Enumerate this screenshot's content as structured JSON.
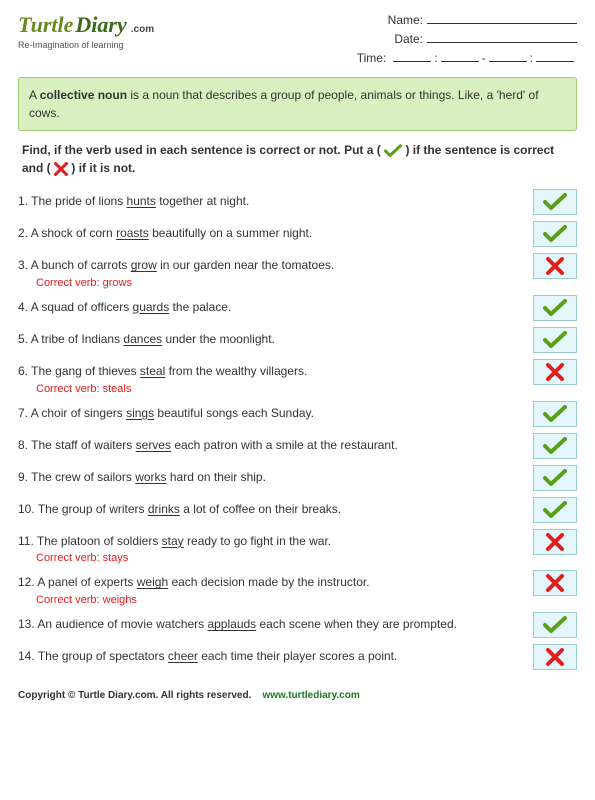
{
  "logo": {
    "turtle": "Turtle",
    "diary": "Diary",
    "dotcom": ".com",
    "tagline": "Re-Imagination of learning"
  },
  "header_fields": {
    "name_label": "Name:",
    "date_label": "Date:",
    "time_label": "Time:"
  },
  "definition": {
    "prefix": "A ",
    "term": "collective noun",
    "rest": " is a noun that describes a group of people, animals or things. Like, a 'herd' of cows."
  },
  "instructions": {
    "part1": "Find, if the verb used in each sentence is correct or not. Put a (",
    "part2": ") if the sentence is correct and (",
    "part3": ") if it is not."
  },
  "correct_verb_label": "Correct verb:",
  "questions": [
    {
      "num": "1.",
      "before": "The pride of lions ",
      "verb": "hunts",
      "after": " together at night.",
      "answer": "check",
      "correction": null
    },
    {
      "num": "2.",
      "before": "A shock of corn ",
      "verb": "roasts",
      "after": " beautifully on a summer night.",
      "answer": "check",
      "correction": null
    },
    {
      "num": "3.",
      "before": "A bunch of carrots  ",
      "verb": "grow",
      "after": " in our garden near the tomatoes.",
      "answer": "cross",
      "correction": "grows"
    },
    {
      "num": "4.",
      "before": "A squad of officers ",
      "verb": "guards",
      "after": " the palace.",
      "answer": "check",
      "correction": null
    },
    {
      "num": "5.",
      "before": "A tribe of Indians ",
      "verb": "dances",
      "after": " under the moonlight.",
      "answer": "check",
      "correction": null
    },
    {
      "num": "6.",
      "before": "The gang of thieves ",
      "verb": "steal",
      "after": " from the wealthy villagers.",
      "answer": "cross",
      "correction": "steals"
    },
    {
      "num": "7.",
      "before": "A choir of singers ",
      "verb": "sings",
      "after": " beautiful songs each Sunday.",
      "answer": "check",
      "correction": null
    },
    {
      "num": "8.",
      "before": "The staff of waiters ",
      "verb": "serves",
      "after": "  each patron with a smile at the restaurant.",
      "answer": "check",
      "correction": null
    },
    {
      "num": "9.",
      "before": "The crew of sailors ",
      "verb": "works",
      "after": " hard on their ship.",
      "answer": "check",
      "correction": null
    },
    {
      "num": "10.",
      "before": "The group of writers  ",
      "verb": "drinks",
      "after": " a lot of coffee on their breaks.",
      "answer": "check",
      "correction": null
    },
    {
      "num": "11.",
      "before": "The platoon of soldiers ",
      "verb": "stay",
      "after": " ready to go fight in the war.",
      "answer": "cross",
      "correction": "stays"
    },
    {
      "num": "12.",
      "before": "A panel of experts ",
      "verb": "weigh",
      "after": " each decision made by the instructor.",
      "answer": "cross",
      "correction": "weighs"
    },
    {
      "num": "13.",
      "before": " An audience of movie watchers ",
      "verb": "applauds",
      "after": " each scene when they are prompted.",
      "answer": "check",
      "correction": null
    },
    {
      "num": "14.",
      "before": " The group of spectators ",
      "verb": "cheer",
      "after": " each time their player scores a point.",
      "answer": "cross",
      "correction": null
    }
  ],
  "footer": {
    "copyright": "Copyright © Turtle Diary.com. All rights reserved.",
    "url": "www.turtlediary.com"
  },
  "colors": {
    "check": "#5aa017",
    "cross": "#e02020",
    "box_bg": "#e4f6fb",
    "box_border": "#9cc",
    "def_bg": "#d9efc0",
    "def_border": "#a7cc74"
  }
}
